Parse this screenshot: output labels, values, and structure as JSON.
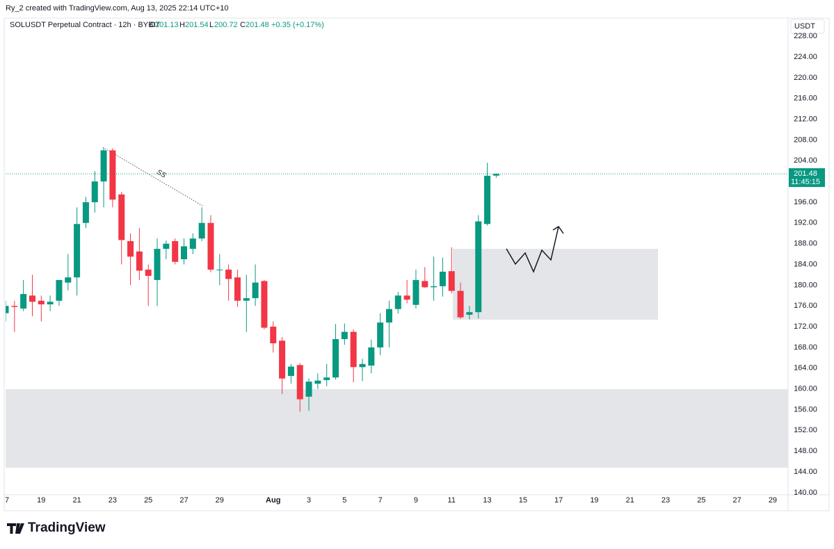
{
  "header": {
    "credit": "Ry_2 created with TradingView.com, Aug 13, 2025 22:14 UTC+10",
    "symbol": "SOLUSDT Perpetual Contract · 12h · BYBIT",
    "o_key": "O",
    "o": "201.13",
    "h_key": "H",
    "h": "201.54",
    "l_key": "L",
    "l": "200.72",
    "c_key": "C",
    "c": "201.48",
    "change": "+0.35 (+0.17%)",
    "currency": "USDT"
  },
  "brand": "TradingView",
  "chart_data": {
    "type": "candlestick",
    "up_color": "#089981",
    "down_color": "#f23645",
    "grid": false,
    "annotation": "SS",
    "current_price": {
      "value": 201.48,
      "label": "201.48"
    },
    "countdown": "11:45:15",
    "xlim": [
      0,
      43.86
    ],
    "ylim": [
      139.58,
      228.96
    ],
    "xticks": [
      {
        "value": 0,
        "label": "7"
      },
      {
        "value": 2,
        "label": "19"
      },
      {
        "value": 4,
        "label": "21"
      },
      {
        "value": 6,
        "label": "23"
      },
      {
        "value": 8,
        "label": "25"
      },
      {
        "value": 10,
        "label": "27"
      },
      {
        "value": 12,
        "label": "29"
      },
      {
        "value": 15,
        "label": "Aug"
      },
      {
        "value": 17,
        "label": "3"
      },
      {
        "value": 19,
        "label": "5"
      },
      {
        "value": 21,
        "label": "7"
      },
      {
        "value": 23,
        "label": "9"
      },
      {
        "value": 25,
        "label": "11"
      },
      {
        "value": 27,
        "label": "13"
      },
      {
        "value": 29,
        "label": "15"
      },
      {
        "value": 31,
        "label": "17"
      },
      {
        "value": 33,
        "label": "19"
      },
      {
        "value": 35,
        "label": "21"
      },
      {
        "value": 37,
        "label": "23"
      },
      {
        "value": 39,
        "label": "25"
      },
      {
        "value": 41,
        "label": "27"
      },
      {
        "value": 43,
        "label": "29"
      }
    ],
    "yticks": [
      {
        "value": 140,
        "label": "140.00"
      },
      {
        "value": 144,
        "label": "144.00"
      },
      {
        "value": 148,
        "label": "148.00"
      },
      {
        "value": 152,
        "label": "152.00"
      },
      {
        "value": 156,
        "label": "156.00"
      },
      {
        "value": 160,
        "label": "160.00"
      },
      {
        "value": 164,
        "label": "164.00"
      },
      {
        "value": 168,
        "label": "168.00"
      },
      {
        "value": 172,
        "label": "172.00"
      },
      {
        "value": 176,
        "label": "176.00"
      },
      {
        "value": 180,
        "label": "180.00"
      },
      {
        "value": 184,
        "label": "184.00"
      },
      {
        "value": 188,
        "label": "188.00"
      },
      {
        "value": 192,
        "label": "192.00"
      },
      {
        "value": 196,
        "label": "196.00"
      },
      {
        "value": 200,
        "label": "200.00"
      },
      {
        "value": 204,
        "label": "204.00"
      },
      {
        "value": 208,
        "label": "208.00"
      },
      {
        "value": 212,
        "label": "212.00"
      },
      {
        "value": 216,
        "label": "216.00"
      },
      {
        "value": 220,
        "label": "220.00"
      },
      {
        "value": 224,
        "label": "224.00"
      },
      {
        "value": 228,
        "label": "228.00"
      }
    ],
    "x": [
      0,
      0.5,
      1,
      1.5,
      2,
      2.5,
      3,
      3.5,
      4,
      4.5,
      5,
      5.5,
      6,
      6.5,
      7,
      7.5,
      8,
      8.5,
      9,
      9.5,
      10,
      10.5,
      11,
      11.5,
      12,
      12.5,
      13,
      13.5,
      14,
      14.5,
      15,
      15.5,
      16,
      16.5,
      17,
      17.5,
      18,
      18.5,
      19,
      19.5,
      20,
      20.5,
      21,
      21.5,
      22,
      22.5,
      23,
      23.5,
      24,
      24.5,
      25,
      25.5,
      26,
      26.5,
      27,
      27.5
    ],
    "open": [
      174.6,
      176,
      175.5,
      178,
      177,
      176.3,
      177,
      180.5,
      181.5,
      192,
      196,
      200,
      206,
      197.5,
      188.5,
      186.5,
      183,
      181,
      187,
      188.5,
      185,
      187,
      189,
      192,
      183,
      183,
      181.5,
      177,
      177.5,
      180.8,
      172,
      169.3,
      162.5,
      164.6,
      158.5,
      161,
      161.7,
      162.2,
      169.6,
      171,
      164.2,
      164.5,
      168,
      172.8,
      175.4,
      178,
      176.2,
      180.8,
      179.6,
      179.8,
      182.7,
      178.9,
      174.3,
      174.8,
      191.8,
      201.13
    ],
    "high": [
      177,
      177,
      181,
      182,
      178,
      178,
      181,
      186,
      195,
      197,
      202,
      206.5,
      206.4,
      198,
      190,
      191,
      184,
      189,
      188.6,
      189,
      189,
      190,
      195,
      193.5,
      186,
      184,
      183,
      182,
      184,
      181,
      173,
      170,
      164.8,
      165,
      162,
      163,
      164.8,
      172.5,
      172.6,
      171.5,
      165.8,
      169.5,
      174.6,
      177,
      178.7,
      181,
      183,
      183.5,
      185.5,
      185.3,
      187.3,
      180.5,
      176,
      193.5,
      203.6,
      201.54
    ],
    "low": [
      173,
      171,
      175,
      174,
      173,
      175,
      176,
      179,
      178,
      191,
      194,
      195,
      195,
      184,
      180,
      181,
      176,
      176,
      185,
      184,
      184,
      186,
      188.5,
      182.5,
      180,
      177,
      175.8,
      171,
      176,
      171.5,
      167,
      159,
      161,
      155.6,
      155.8,
      160,
      160.5,
      161.8,
      168.5,
      161.3,
      161.5,
      163,
      166.5,
      168,
      174.5,
      176.5,
      175.5,
      179.5,
      177,
      177.8,
      178.4,
      173.5,
      173.4,
      173.6,
      191.5,
      200.72
    ],
    "close": [
      176,
      175.8,
      178.3,
      176.8,
      176.3,
      176.8,
      181,
      181.5,
      191.8,
      196,
      200,
      206,
      196.5,
      188.7,
      185.5,
      182.8,
      181.8,
      187,
      188,
      184.5,
      187.5,
      189,
      192,
      183,
      183,
      181.2,
      177,
      177.5,
      180.5,
      171.8,
      168.8,
      162,
      164.3,
      158,
      161.4,
      161.6,
      162.2,
      169.6,
      171,
      164.2,
      164.8,
      168,
      172.8,
      175.4,
      178,
      177.2,
      181,
      179.6,
      179.8,
      182.6,
      178.9,
      173.8,
      174.8,
      192.3,
      201.1,
      201.48
    ]
  }
}
